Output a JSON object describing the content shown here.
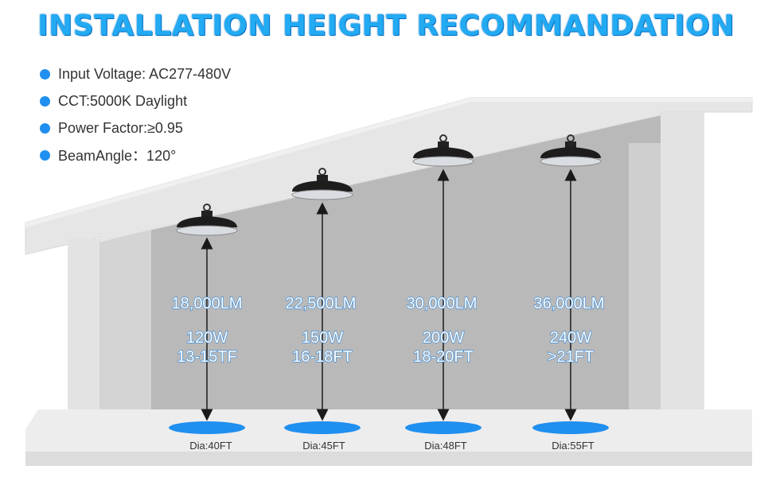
{
  "title": "INSTALLATION HEIGHT RECOMMANDATION",
  "specs": [
    "Input Voltage: AC277-480V",
    "CCT:5000K Daylight",
    "Power Factor:≥0.95",
    "BeamAngle：120°"
  ],
  "lights": [
    {
      "lumens": "18,000LM",
      "watts": "120W",
      "height": "13-15TF",
      "diameter": "Dia:40FT"
    },
    {
      "lumens": "22,500LM",
      "watts": "150W",
      "height": "16-18FT",
      "diameter": "Dia:45FT"
    },
    {
      "lumens": "30,000LM",
      "watts": "200W",
      "height": "18-20FT",
      "diameter": "Dia:48FT"
    },
    {
      "lumens": "36,000LM",
      "watts": "240W",
      "height": ">21FT",
      "diameter": "Dia:55FT"
    }
  ],
  "colors": {
    "accent": "#1f8ff0",
    "title": "#22aaf2",
    "wall": "#b9b9b9",
    "frame": "#e6e6e6"
  }
}
